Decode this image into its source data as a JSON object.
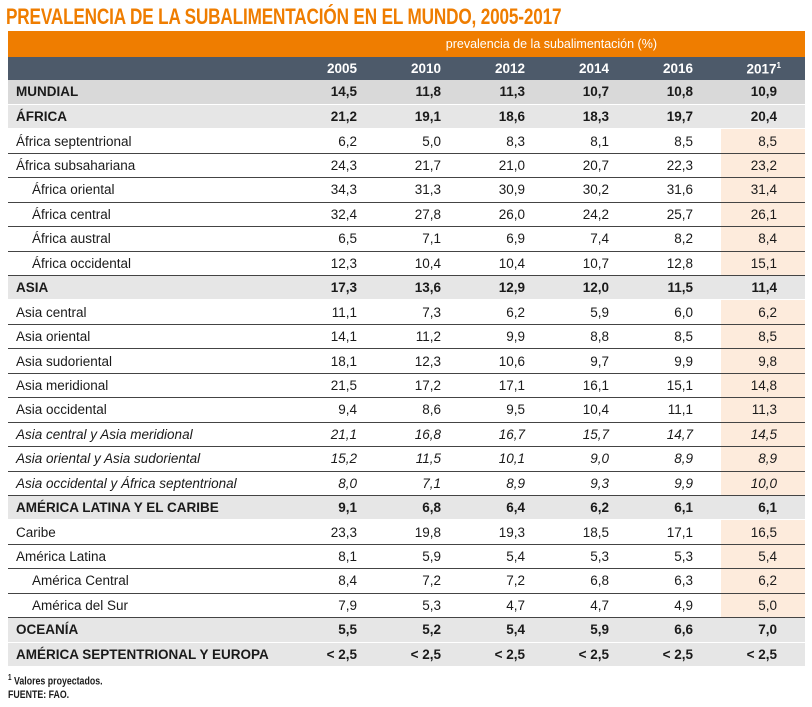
{
  "title": "PREVALENCIA DE LA SUBALIMENTACIÓN EN EL MUNDO, 2005-2017",
  "header_group": "prevalencia de la subalimentación (%)",
  "years": [
    "2005",
    "2010",
    "2012",
    "2014",
    "2016",
    "2017"
  ],
  "years_last_sup": "1",
  "rows": [
    {
      "label": "MUNDIAL",
      "type": "bold",
      "values": [
        "14,5",
        "11,8",
        "11,3",
        "10,7",
        "10,8",
        "10,9"
      ]
    },
    {
      "label": "ÁFRICA",
      "type": "bold2",
      "values": [
        "21,2",
        "19,1",
        "18,6",
        "18,3",
        "19,7",
        "20,4"
      ]
    },
    {
      "label": "África septentrional",
      "type": "norm",
      "values": [
        "6,2",
        "5,0",
        "8,3",
        "8,1",
        "8,5",
        "8,5"
      ]
    },
    {
      "label": "África subsahariana",
      "type": "norm",
      "values": [
        "24,3",
        "21,7",
        "21,0",
        "20,7",
        "22,3",
        "23,2"
      ]
    },
    {
      "label": "África oriental",
      "type": "norm indent",
      "values": [
        "34,3",
        "31,3",
        "30,9",
        "30,2",
        "31,6",
        "31,4"
      ]
    },
    {
      "label": "África central",
      "type": "norm indent",
      "values": [
        "32,4",
        "27,8",
        "26,0",
        "24,2",
        "25,7",
        "26,1"
      ]
    },
    {
      "label": "África austral",
      "type": "norm indent",
      "values": [
        "6,5",
        "7,1",
        "6,9",
        "7,4",
        "8,2",
        "8,4"
      ]
    },
    {
      "label": "África occidental",
      "type": "norm indent",
      "values": [
        "12,3",
        "10,4",
        "10,4",
        "10,7",
        "12,8",
        "15,1"
      ]
    },
    {
      "label": "ASIA",
      "type": "bold2",
      "values": [
        "17,3",
        "13,6",
        "12,9",
        "12,0",
        "11,5",
        "11,4"
      ]
    },
    {
      "label": "Asia central",
      "type": "norm",
      "values": [
        "11,1",
        "7,3",
        "6,2",
        "5,9",
        "6,0",
        "6,2"
      ]
    },
    {
      "label": "Asia oriental",
      "type": "norm",
      "values": [
        "14,1",
        "11,2",
        "9,9",
        "8,8",
        "8,5",
        "8,5"
      ]
    },
    {
      "label": "Asia sudoriental",
      "type": "norm",
      "values": [
        "18,1",
        "12,3",
        "10,6",
        "9,7",
        "9,9",
        "9,8"
      ]
    },
    {
      "label": "Asia meridional",
      "type": "norm",
      "values": [
        "21,5",
        "17,2",
        "17,1",
        "16,1",
        "15,1",
        "14,8"
      ]
    },
    {
      "label": "Asia occidental",
      "type": "norm",
      "values": [
        "9,4",
        "8,6",
        "9,5",
        "10,4",
        "11,1",
        "11,3"
      ]
    },
    {
      "label": "Asia central y Asia meridional",
      "type": "norm ital",
      "values": [
        "21,1",
        "16,8",
        "16,7",
        "15,7",
        "14,7",
        "14,5"
      ]
    },
    {
      "label": "Asia oriental y Asia sudoriental",
      "type": "norm ital",
      "values": [
        "15,2",
        "11,5",
        "10,1",
        "9,0",
        "8,9",
        "8,9"
      ]
    },
    {
      "label": "Asia occidental y África septentrional",
      "type": "norm ital",
      "values": [
        "8,0",
        "7,1",
        "8,9",
        "9,3",
        "9,9",
        "10,0"
      ]
    },
    {
      "label": "AMÉRICA LATINA Y EL CARIBE",
      "type": "bold2",
      "values": [
        "9,1",
        "6,8",
        "6,4",
        "6,2",
        "6,1",
        "6,1"
      ]
    },
    {
      "label": "Caribe",
      "type": "norm",
      "values": [
        "23,3",
        "19,8",
        "19,3",
        "18,5",
        "17,1",
        "16,5"
      ]
    },
    {
      "label": "América Latina",
      "type": "norm",
      "values": [
        "8,1",
        "5,9",
        "5,4",
        "5,3",
        "5,3",
        "5,4"
      ]
    },
    {
      "label": "América Central",
      "type": "norm indent",
      "values": [
        "8,4",
        "7,2",
        "7,2",
        "6,8",
        "6,3",
        "6,2"
      ]
    },
    {
      "label": "América del Sur",
      "type": "norm indent",
      "values": [
        "7,9",
        "5,3",
        "4,7",
        "4,7",
        "4,9",
        "5,0"
      ]
    },
    {
      "label": "OCEANÍA",
      "type": "bold2",
      "values": [
        "5,5",
        "5,2",
        "5,4",
        "5,9",
        "6,6",
        "7,0"
      ]
    },
    {
      "label": "AMÉRICA SEPTENTRIONAL Y EUROPA",
      "type": "bold2",
      "values": [
        "< 2,5",
        "< 2,5",
        "< 2,5",
        "< 2,5",
        "< 2,5",
        "< 2,5"
      ]
    }
  ],
  "footnote_mark": "1",
  "footnote": "Valores proyectados.",
  "source": "FUENTE: FAO.",
  "colors": {
    "accent": "#ef7d00",
    "header": "#4d5a6a",
    "highlight": "#fdebdc"
  }
}
